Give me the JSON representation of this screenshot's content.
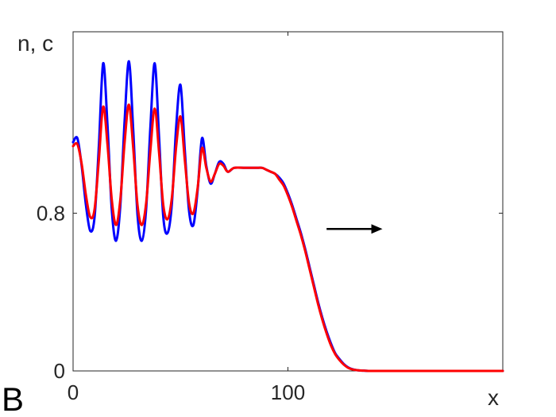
{
  "chart_data": {
    "type": "line",
    "panel_label": "B",
    "xlabel": "x",
    "ylabel": "n, c",
    "xlim": [
      0,
      200
    ],
    "ylim": [
      0,
      1.72
    ],
    "x_ticks": [
      {
        "value": 0,
        "label": "0"
      },
      {
        "value": 100,
        "label": "100"
      }
    ],
    "y_ticks": [
      {
        "value": 0,
        "label": "0"
      },
      {
        "value": 0.8,
        "label": "0.8"
      }
    ],
    "grid": false,
    "series": [
      {
        "color": "#0000ff",
        "x": [
          0,
          2,
          4,
          6,
          8,
          10,
          12,
          14,
          16,
          18,
          20,
          22,
          24,
          26,
          28,
          30,
          32,
          34,
          36,
          38,
          40,
          42,
          44,
          46,
          48,
          50,
          52,
          54,
          56,
          58,
          60,
          62,
          64,
          66,
          68,
          70,
          72,
          75,
          80,
          85,
          88,
          90,
          92,
          94,
          96,
          98,
          100,
          102,
          104,
          106,
          108,
          110,
          112,
          114,
          116,
          118,
          120,
          122,
          124,
          126,
          128,
          130,
          132,
          134,
          136,
          138,
          140,
          145,
          150,
          160,
          180,
          200
        ],
        "y": [
          1.16,
          1.18,
          1.04,
          0.84,
          0.71,
          0.78,
          1.14,
          1.56,
          1.25,
          0.82,
          0.66,
          0.84,
          1.27,
          1.57,
          1.22,
          0.79,
          0.66,
          0.82,
          1.24,
          1.56,
          1.19,
          0.78,
          0.7,
          0.85,
          1.24,
          1.45,
          1.12,
          0.81,
          0.74,
          0.92,
          1.18,
          1.04,
          0.95,
          1.0,
          1.06,
          1.05,
          1.01,
          1.03,
          1.03,
          1.03,
          1.03,
          1.02,
          1.01,
          1.0,
          0.98,
          0.95,
          0.9,
          0.84,
          0.77,
          0.7,
          0.62,
          0.53,
          0.44,
          0.35,
          0.27,
          0.2,
          0.14,
          0.09,
          0.06,
          0.035,
          0.018,
          0.009,
          0.004,
          0.002,
          0.001,
          0,
          0,
          0,
          0,
          0,
          0,
          0
        ]
      },
      {
        "color": "#ff0000",
        "x": [
          0,
          2,
          4,
          6,
          8,
          10,
          12,
          14,
          16,
          18,
          20,
          22,
          24,
          26,
          28,
          30,
          32,
          34,
          36,
          38,
          40,
          42,
          44,
          46,
          48,
          50,
          52,
          54,
          56,
          58,
          60,
          62,
          64,
          66,
          68,
          70,
          72,
          75,
          80,
          85,
          88,
          90,
          92,
          94,
          96,
          98,
          100,
          102,
          104,
          106,
          108,
          110,
          112,
          114,
          116,
          118,
          120,
          122,
          124,
          126,
          128,
          130,
          132,
          134,
          136,
          138,
          140,
          145,
          150,
          160,
          180,
          200
        ],
        "y": [
          1.14,
          1.15,
          1.05,
          0.89,
          0.78,
          0.82,
          1.07,
          1.34,
          1.15,
          0.87,
          0.74,
          0.87,
          1.16,
          1.35,
          1.13,
          0.84,
          0.74,
          0.85,
          1.12,
          1.33,
          1.11,
          0.84,
          0.77,
          0.88,
          1.14,
          1.29,
          1.07,
          0.85,
          0.8,
          0.93,
          1.13,
          1.03,
          0.96,
          1.0,
          1.05,
          1.04,
          1.01,
          1.03,
          1.03,
          1.03,
          1.03,
          1.02,
          1.01,
          1.0,
          0.97,
          0.94,
          0.89,
          0.83,
          0.76,
          0.69,
          0.61,
          0.52,
          0.43,
          0.34,
          0.26,
          0.19,
          0.13,
          0.085,
          0.055,
          0.032,
          0.016,
          0.008,
          0.004,
          0.002,
          0.001,
          0,
          0,
          0,
          0,
          0,
          0,
          0
        ]
      }
    ],
    "annotations": [
      {
        "type": "arrow",
        "from": [
          118,
          0.72
        ],
        "to": [
          144,
          0.72
        ],
        "color": "#000000"
      }
    ]
  }
}
